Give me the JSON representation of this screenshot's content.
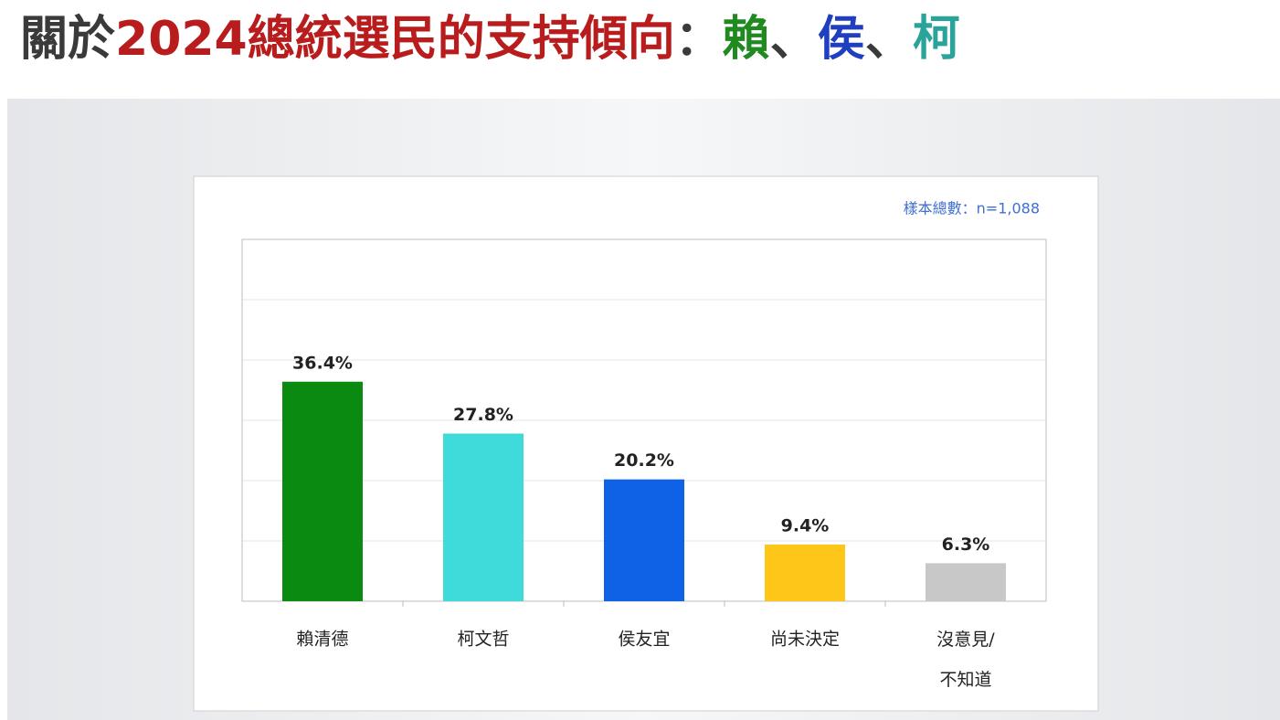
{
  "chart_data": {
    "type": "bar",
    "title_parts": [
      {
        "text": "關於",
        "color": "#3a3a3a"
      },
      {
        "text": "2024總統選民的支持傾向",
        "color": "#b81c1c"
      },
      {
        "text": "：",
        "color": "#3a3a3a"
      },
      {
        "text": "賴",
        "color": "#1f8a1f"
      },
      {
        "text": "、",
        "color": "#3a3a3a"
      },
      {
        "text": "侯",
        "color": "#1f3fc0"
      },
      {
        "text": "、",
        "color": "#3a3a3a"
      },
      {
        "text": "柯",
        "color": "#2aa39a"
      }
    ],
    "annotation": "樣本總數：n=1,088",
    "categories": [
      "賴清德",
      "柯文哲",
      "侯友宜",
      "尚未決定",
      "沒意見/\n不知道"
    ],
    "values": [
      36.4,
      27.8,
      20.2,
      9.4,
      6.3
    ],
    "value_labels": [
      "36.4%",
      "27.8%",
      "20.2%",
      "9.4%",
      "6.3%"
    ],
    "colors": [
      "#0b8a12",
      "#3fdada",
      "#0f62e6",
      "#ffc61a",
      "#c8c8c8"
    ],
    "ylim": [
      0,
      60
    ],
    "yticks": [
      0,
      10,
      20,
      30,
      40,
      50,
      60
    ],
    "grid": true
  }
}
